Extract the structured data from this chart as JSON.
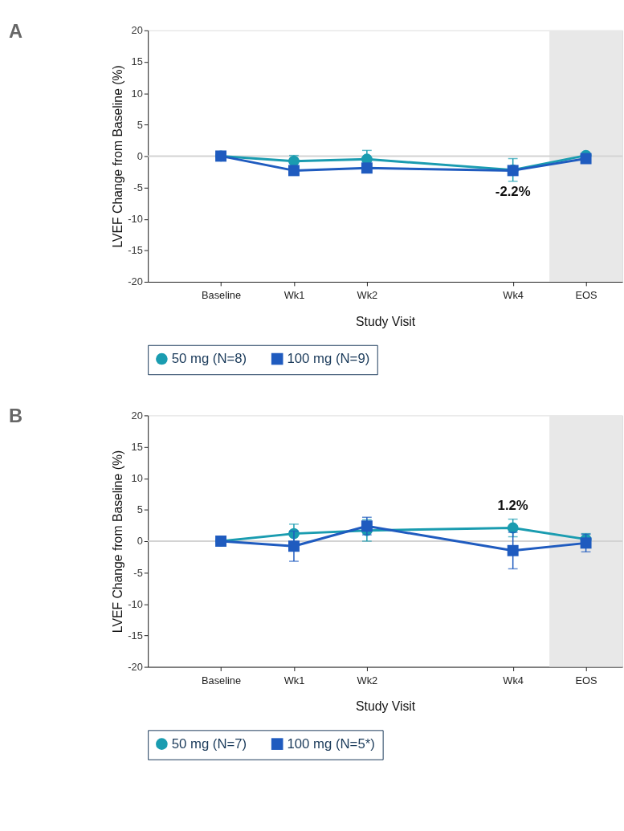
{
  "chart_data": [
    {
      "type": "line",
      "title": "A",
      "xlabel": "Study Visit",
      "ylabel": "LVEF Change from Baseline (%)",
      "categories": [
        "Baseline",
        "Wk1",
        "Wk2",
        null,
        "Wk4",
        "EOS"
      ],
      "series": [
        {
          "name": "50 mg (N=8)",
          "color": "#1a9cb0",
          "marker": "circle",
          "values": [
            0,
            -0.8,
            -0.5,
            null,
            -2.2,
            0.1
          ],
          "errors": [
            null,
            0.9,
            1.4,
            null,
            1.8,
            null
          ]
        },
        {
          "name": "100 mg (N=9)",
          "color": "#1f5bbf",
          "marker": "square",
          "values": [
            0,
            -2.3,
            -1.9,
            null,
            -2.3,
            -0.4
          ]
        }
      ],
      "ylim": [
        -20,
        20
      ],
      "yticks": [
        -20,
        -15,
        -10,
        -5,
        0,
        5,
        10,
        15,
        20
      ],
      "ref_lines": [
        {
          "axis": "y",
          "value": 0,
          "color": "#d3d3d3"
        }
      ],
      "bands": [
        {
          "axis": "x",
          "from": "EOS",
          "to": "EOS",
          "color": "#e8e8e8"
        }
      ],
      "annotations": [
        {
          "text": "-2.2%",
          "x": "Wk4",
          "y": -2.2
        }
      ],
      "grid": false,
      "legend": "bottom"
    },
    {
      "type": "line",
      "title": "B",
      "xlabel": "Study Visit",
      "ylabel": "LVEF Change from Baseline (%)",
      "categories": [
        "Baseline",
        "Wk1",
        "Wk2",
        null,
        "Wk4",
        "EOS"
      ],
      "series": [
        {
          "name": "50 mg (N=7)",
          "color": "#1a9cb0",
          "marker": "circle",
          "values": [
            0,
            1.2,
            1.7,
            null,
            2.1,
            0.3
          ],
          "errors": [
            null,
            1.5,
            1.7,
            null,
            1.4,
            0.9
          ]
        },
        {
          "name": "100 mg (N=5*)",
          "color": "#1f5bbf",
          "marker": "square",
          "values": [
            0,
            -0.8,
            2.4,
            null,
            -1.5,
            -0.3
          ],
          "errors": [
            null,
            2.4,
            1.4,
            null,
            2.9,
            1.4
          ]
        }
      ],
      "ylim": [
        -20,
        20
      ],
      "yticks": [
        -20,
        -15,
        -10,
        -5,
        0,
        5,
        10,
        15,
        20
      ],
      "ref_lines": [
        {
          "axis": "y",
          "value": 0,
          "color": "#d3d3d3"
        }
      ],
      "bands": [
        {
          "axis": "x",
          "from": "EOS",
          "to": "EOS",
          "color": "#e8e8e8"
        }
      ],
      "annotations": [
        {
          "text": "1.2%",
          "x": "Wk4",
          "y": 2.1
        }
      ],
      "grid": false,
      "legend": "bottom"
    }
  ]
}
